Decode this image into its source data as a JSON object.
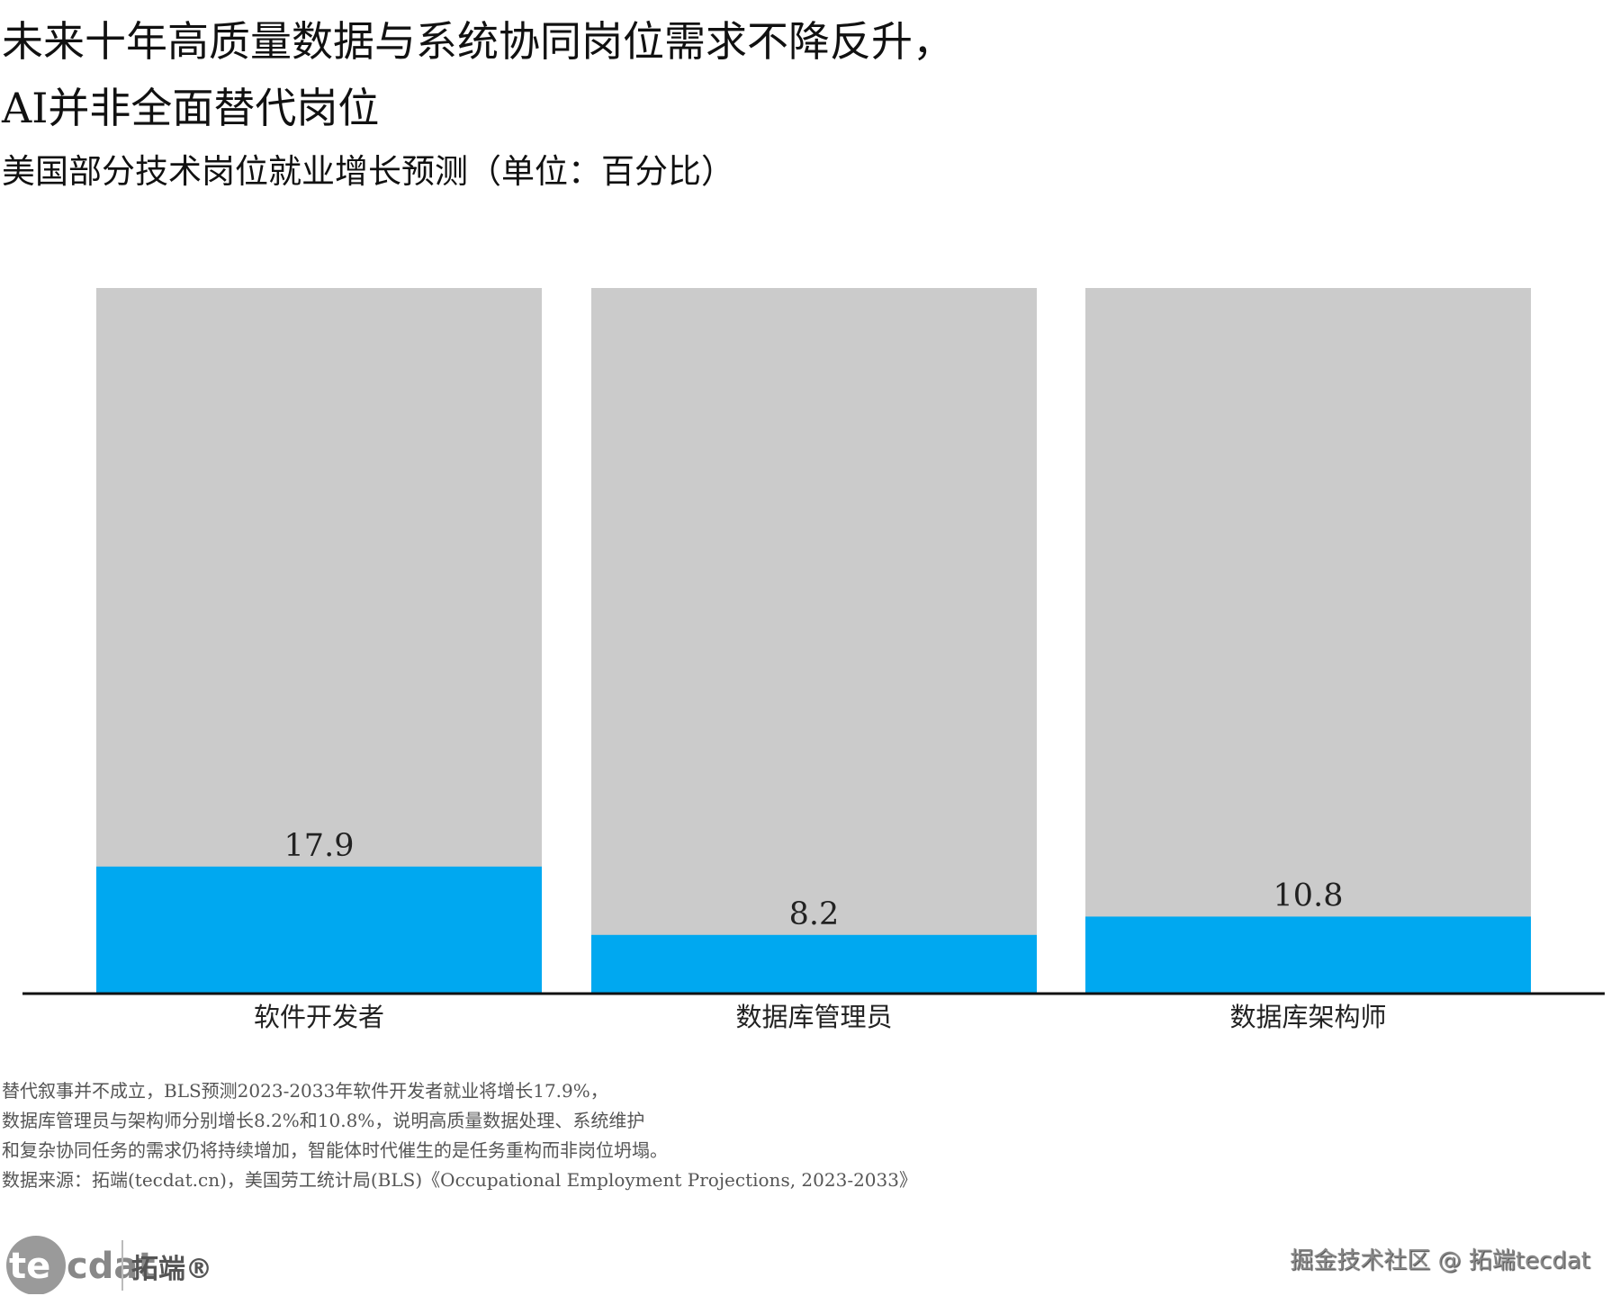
{
  "title_line1": "未来十年高质量数据与系统协同岗位需求不降反升，",
  "title_line2": "AI并非全面替代岗位",
  "subtitle": "美国部分技术岗位就业增长预测（单位：百分比）",
  "notes": [
    "替代叙事并不成立，BLS预测2023-2033年软件开发者就业将增长17.9%，",
    "数据库管理员与架构师分别增长8.2%和10.8%，说明高质量数据处理、系统维护",
    "和复杂协同任务的需求仍将持续增加，智能体时代催生的是任务重构而非岗位坍塌。",
    "数据来源：拓端(tecdat.cn)，美国劳工统计局(BLS)《Occupational Employment Projections, 2023-2033》"
  ],
  "logo": {
    "text": "tecdat",
    "brand": "拓端®"
  },
  "watermark": "掘金技术社区 @ 拓端tecdat",
  "colors": {
    "value": "#00a8f0",
    "background_bar": "#cbcbcb",
    "axis": "#111111"
  },
  "chart_data": {
    "type": "bar",
    "title": "美国部分技术岗位就业增长预测（单位：百分比）",
    "categories": [
      "软件开发者",
      "数据库管理员",
      "数据库架构师"
    ],
    "values": [
      17.9,
      8.2,
      10.8
    ],
    "value_labels": [
      "17.9",
      "8.2",
      "10.8"
    ],
    "ylim": [
      0,
      100
    ],
    "background_bar_value": 100,
    "xlabel": "",
    "ylabel": "",
    "grid": false,
    "legend": "none"
  }
}
